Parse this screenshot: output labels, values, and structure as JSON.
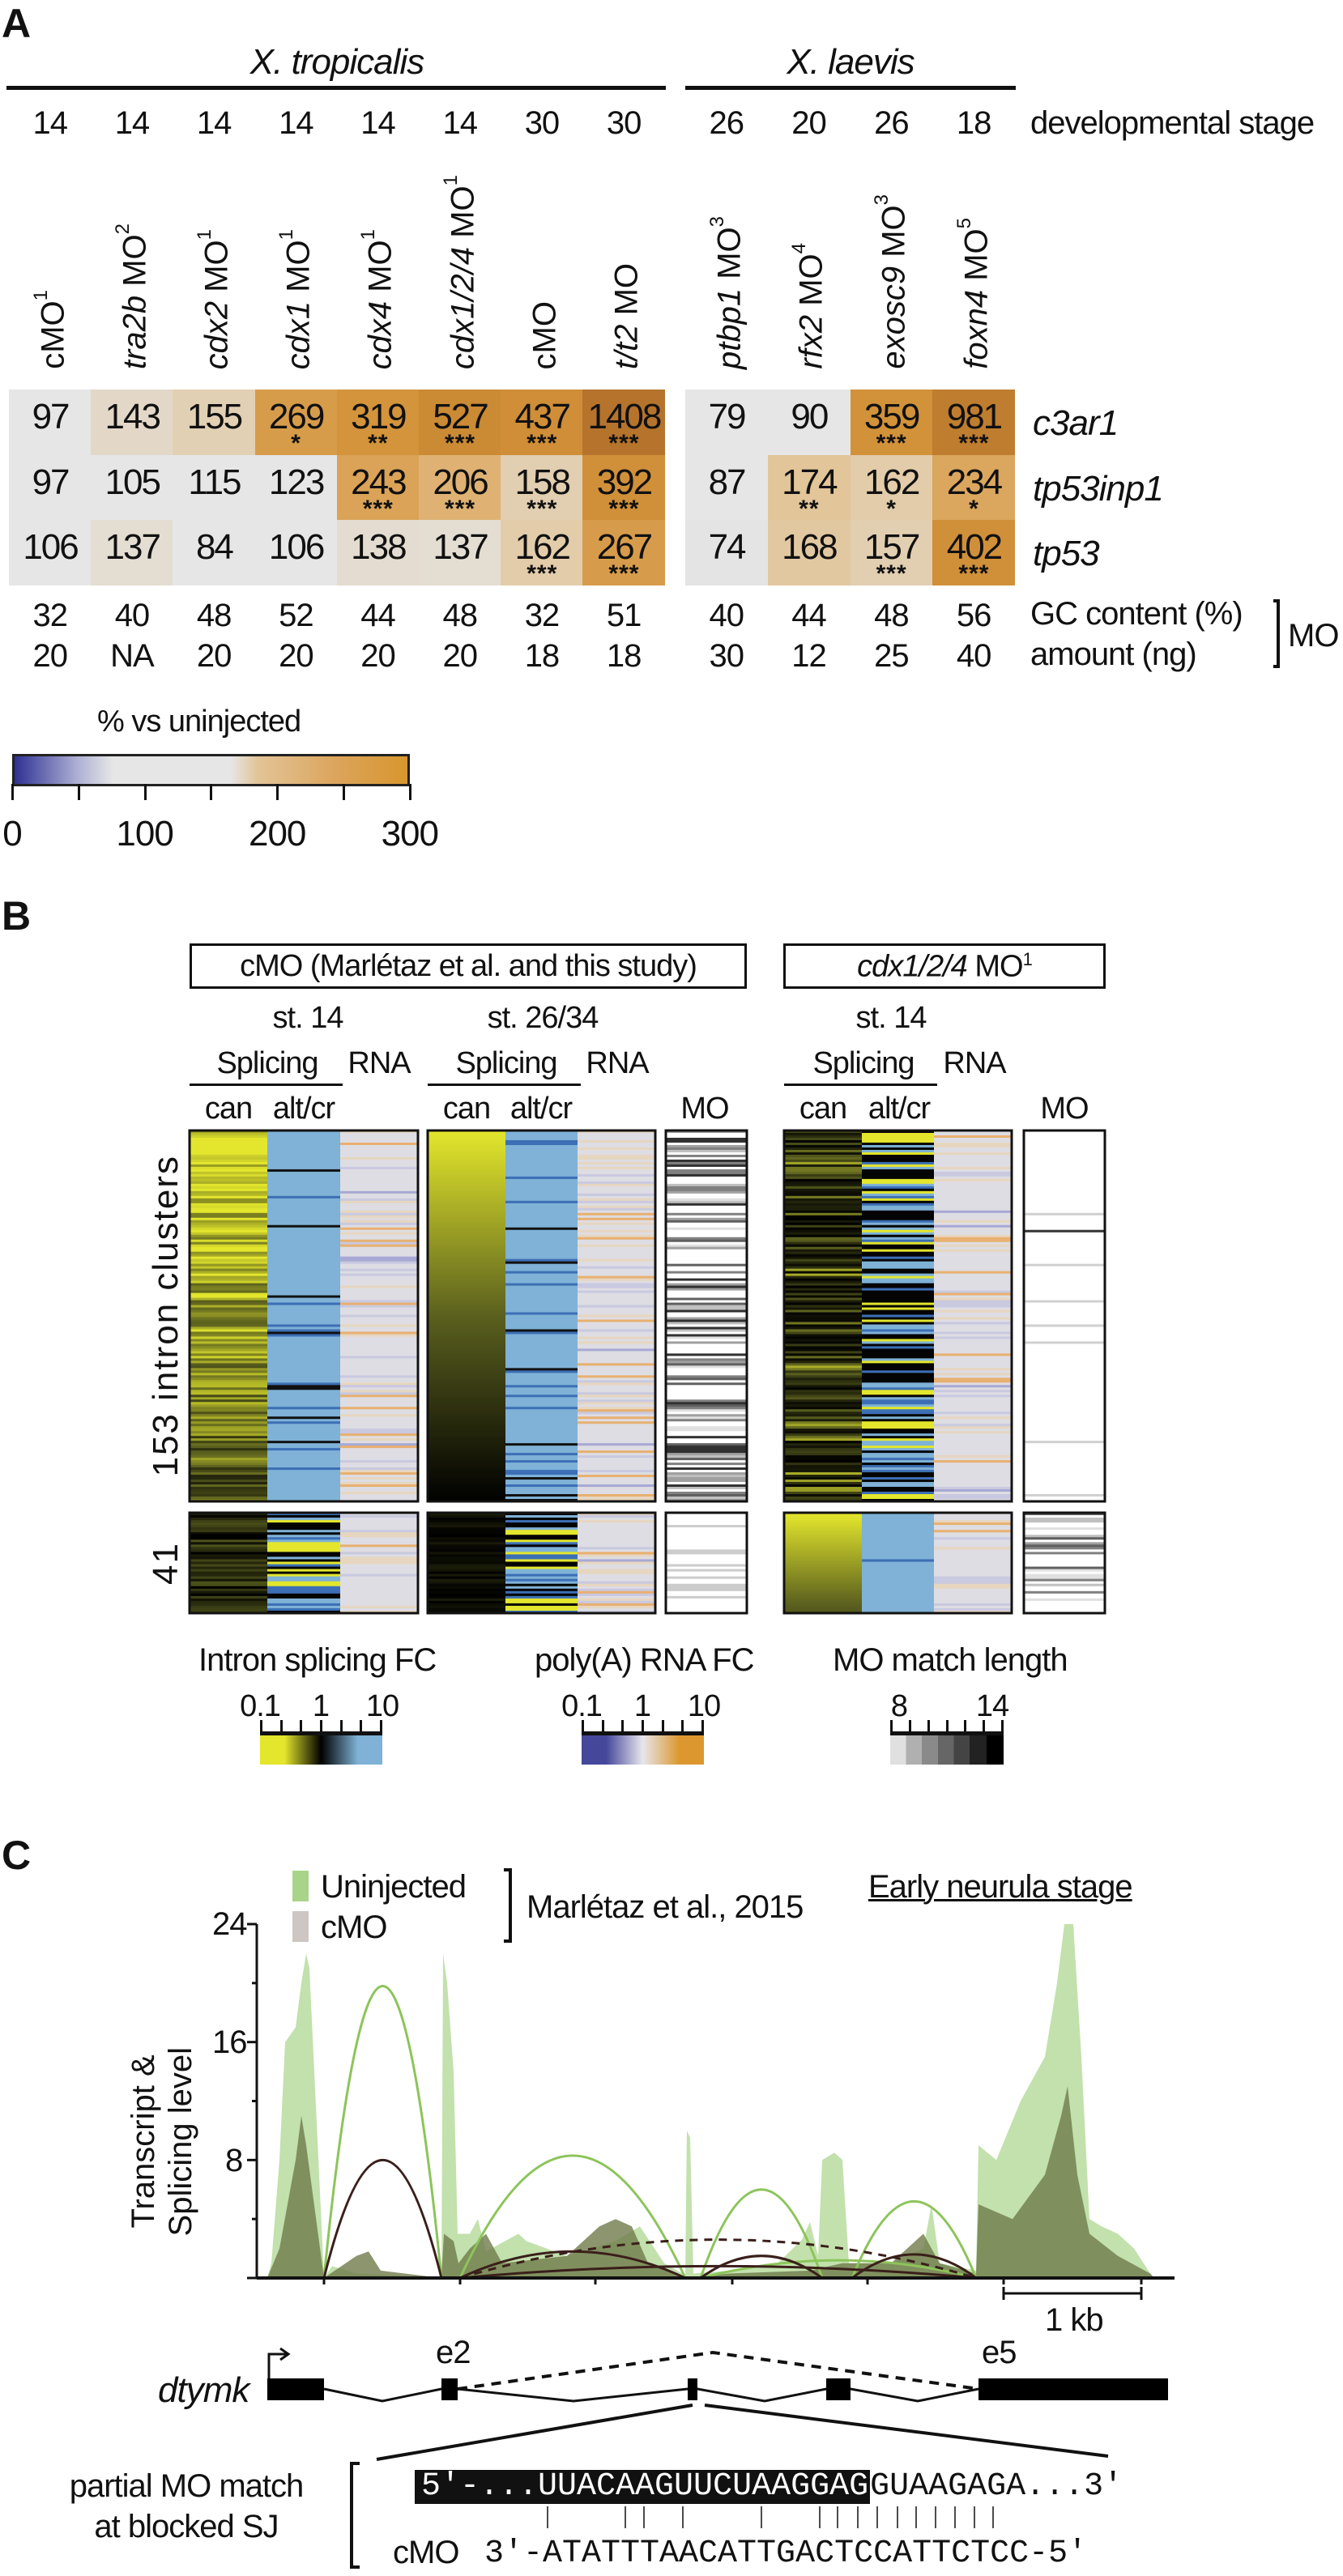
{
  "panel_labels": {
    "a": "A",
    "b": "B",
    "c": "C"
  },
  "chart_data": [
    {
      "type": "heatmap",
      "species_groups": [
        {
          "name": "X. tropicalis"
        },
        {
          "name": "X. laevis"
        }
      ],
      "columns": [
        {
          "gene": "",
          "label": "cMO",
          "sup": "1",
          "stage": "14",
          "gc": "32",
          "amount": "20"
        },
        {
          "gene": "tra2b",
          "label": " MO",
          "sup": "2",
          "stage": "14",
          "gc": "40",
          "amount": "NA"
        },
        {
          "gene": "cdx2",
          "label": " MO",
          "sup": "1",
          "stage": "14",
          "gc": "48",
          "amount": "20"
        },
        {
          "gene": "cdx1",
          "label": " MO",
          "sup": "1",
          "stage": "14",
          "gc": "52",
          "amount": "20"
        },
        {
          "gene": "cdx4",
          "label": " MO",
          "sup": "1",
          "stage": "14",
          "gc": "44",
          "amount": "20"
        },
        {
          "gene": "cdx1/2/4",
          "label": " MO",
          "sup": "1",
          "stage": "14",
          "gc": "48",
          "amount": "20"
        },
        {
          "gene": "",
          "label": "cMO",
          "sup": "",
          "stage": "30",
          "gc": "32",
          "amount": "18"
        },
        {
          "gene": "t/t2",
          "label": " MO",
          "sup": "",
          "stage": "30",
          "gc": "51",
          "amount": "18"
        },
        {
          "gene": "ptbp1",
          "label": " MO",
          "sup": "3",
          "stage": "26",
          "gc": "40",
          "amount": "30"
        },
        {
          "gene": "rfx2",
          "label": " MO",
          "sup": "4",
          "stage": "20",
          "gc": "44",
          "amount": "12"
        },
        {
          "gene": "exosc9",
          "label": " MO",
          "sup": "3",
          "stage": "26",
          "gc": "48",
          "amount": "25"
        },
        {
          "gene": "foxn4",
          "label": " MO",
          "sup": "5",
          "stage": "18",
          "gc": "56",
          "amount": "40"
        }
      ],
      "rows": [
        "c3ar1",
        "tp53inp1",
        "tp53"
      ],
      "values": [
        [
          97,
          143,
          155,
          269,
          319,
          527,
          437,
          1408,
          79,
          90,
          359,
          981
        ],
        [
          97,
          105,
          115,
          123,
          243,
          206,
          158,
          392,
          87,
          174,
          162,
          234
        ],
        [
          106,
          137,
          84,
          106,
          138,
          137,
          162,
          267,
          74,
          168,
          157,
          402
        ]
      ],
      "significance": [
        [
          "",
          "",
          "",
          "*",
          "**",
          "***",
          "***",
          "***",
          "",
          "",
          "***",
          "***"
        ],
        [
          "",
          "",
          "",
          "",
          "***",
          "***",
          "***",
          "***",
          "",
          "**",
          "*",
          "*"
        ],
        [
          "",
          "",
          "",
          "",
          "",
          "",
          "***",
          "***",
          "",
          "",
          "***",
          "***"
        ]
      ],
      "row_annotations": {
        "stage": "developmental stage",
        "gc": "GC content (%)",
        "amount": "amount (ng)",
        "mo": "MO"
      },
      "colorbar": {
        "title": "% vs uninjected",
        "range": [
          0,
          300
        ],
        "ticks": [
          "0",
          "100",
          "200",
          "300"
        ],
        "colors": {
          "low": "#2e3192",
          "mid": "#e6e6e6",
          "high": "#d8962e",
          "max": "#b3712b"
        }
      }
    },
    {
      "type": "heatmap",
      "groups": [
        {
          "title": "cMO (Marlétaz et al. and this study)",
          "stages": [
            "st. 14",
            "st. 26/34"
          ]
        },
        {
          "title_gene": "cdx1/2/4",
          "title_suffix": " MO",
          "title_sup": "1",
          "stages": [
            "st. 14"
          ]
        }
      ],
      "headers": {
        "splicing": "Splicing",
        "rna": "RNA",
        "can": "can",
        "alt": "alt/cr",
        "mo": "MO"
      },
      "row_groups": [
        {
          "label": "153 intron clusters",
          "count": 153
        },
        {
          "label": "41",
          "count": 41
        }
      ],
      "legends": [
        {
          "title": "Intron splicing FC",
          "ticks": [
            "0.1",
            "1",
            "10"
          ],
          "colors": [
            "#e3e62c",
            "#000000",
            "#7fb2d6"
          ]
        },
        {
          "title": "poly(A) RNA FC",
          "ticks": [
            "0.1",
            "1",
            "10"
          ],
          "colors": [
            "#45479a",
            "#e6e6ec",
            "#dc982f"
          ]
        },
        {
          "title": "MO match length",
          "ticks": [
            "8",
            "14"
          ],
          "colors": [
            "#e0e0e0",
            "#000000"
          ]
        }
      ]
    },
    {
      "type": "area",
      "legend": [
        {
          "name": "Uninjected",
          "color": "#a8d48a"
        },
        {
          "name": "cMO",
          "color": "#cdc6c2"
        }
      ],
      "source": "Marlétaz et al., 2015",
      "stage": "Early neurula stage",
      "ylabel": [
        "Transcript &",
        "Splicing level"
      ],
      "yticks": [
        "8",
        "16",
        "24"
      ],
      "ylim": [
        0,
        24
      ],
      "scale_bar": "1 kb",
      "gene": "dtymk",
      "exon_labels": [
        "e2",
        "e5"
      ],
      "match_label": [
        "partial MO match",
        "at blocked SJ"
      ],
      "target_seq_matched": "5′-...UUACAAGUUCUAAGGAG",
      "target_seq_rest": "GUAAGAGA...3′",
      "mo_label": "cMO",
      "mo_seq": "3′-ATATTTAACATTGACTCCATTCTCC-5′"
    }
  ]
}
